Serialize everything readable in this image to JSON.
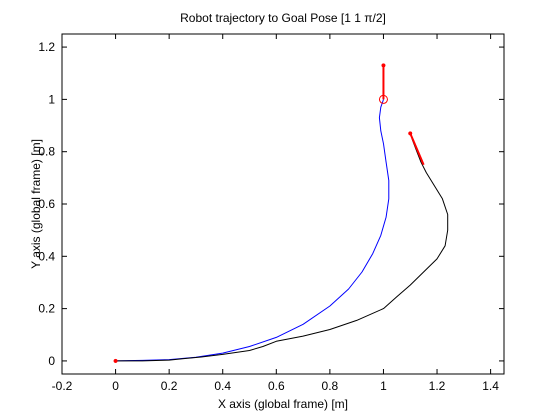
{
  "chart_data": {
    "type": "line",
    "title": "Robot trajectory to Goal Pose [1 1 π/2]",
    "xlabel": "X axis (global frame) [m]",
    "ylabel": "Y axis (global frame) [m]",
    "xlim": [
      -0.2,
      1.45
    ],
    "ylim": [
      -0.05,
      1.25
    ],
    "xticks": [
      -0.2,
      0,
      0.2,
      0.4,
      0.6,
      0.8,
      1,
      1.2,
      1.4
    ],
    "xtick_labels": [
      "-0.2",
      "0",
      "0.2",
      "0.4",
      "0.6",
      "0.8",
      "1",
      "1.2",
      "1.4"
    ],
    "yticks": [
      0,
      0.2,
      0.4,
      0.6,
      0.8,
      1,
      1.2
    ],
    "ytick_labels": [
      "0",
      "0.2",
      "0.4",
      "0.6",
      "0.8",
      "1",
      "1.2"
    ],
    "grid": false,
    "series": [
      {
        "color": "#0000ff",
        "x": [
          0,
          0.1,
          0.2,
          0.3,
          0.4,
          0.5,
          0.6,
          0.7,
          0.8,
          0.87,
          0.92,
          0.96,
          0.99,
          1.01,
          1.02,
          1.02,
          1.01,
          1.0,
          0.99,
          0.985,
          0.99,
          1.0
        ],
        "y": [
          0,
          0.002,
          0.005,
          0.014,
          0.03,
          0.055,
          0.09,
          0.14,
          0.21,
          0.275,
          0.34,
          0.41,
          0.48,
          0.55,
          0.62,
          0.69,
          0.76,
          0.83,
          0.88,
          0.93,
          0.97,
          1.0
        ]
      },
      {
        "color": "#000000",
        "x": [
          0,
          0.1,
          0.2,
          0.25,
          0.32,
          0.4,
          0.5,
          0.55,
          0.6,
          0.7,
          0.8,
          0.9,
          1.0,
          1.05,
          1.1,
          1.15,
          1.2,
          1.23,
          1.24,
          1.24,
          1.22,
          1.19,
          1.16,
          1.14,
          1.125,
          1.11,
          1.1
        ],
        "y": [
          0,
          0,
          0.003,
          0.008,
          0.015,
          0.025,
          0.04,
          0.055,
          0.075,
          0.095,
          0.12,
          0.155,
          0.2,
          0.245,
          0.29,
          0.34,
          0.39,
          0.44,
          0.5,
          0.56,
          0.62,
          0.67,
          0.72,
          0.76,
          0.8,
          0.84,
          0.87
        ]
      }
    ],
    "markers": [
      {
        "type": "dot",
        "color": "#ff0000",
        "x": 0,
        "y": 0
      },
      {
        "type": "circle",
        "color": "#ff0000",
        "x": 1.0,
        "y": 1.0
      },
      {
        "type": "dot",
        "color": "#ff0000",
        "x": 1.0,
        "y": 1.13
      },
      {
        "type": "dot",
        "color": "#ff0000",
        "x": 1.1,
        "y": 0.87
      }
    ],
    "arrows": [
      {
        "color": "#ff0000",
        "x1": 1.0,
        "y1": 1.0,
        "x2": 1.0,
        "y2": 1.13
      },
      {
        "color": "#ff0000",
        "x1": 1.1,
        "y1": 0.87,
        "x2": 1.15,
        "y2": 0.75
      }
    ]
  }
}
